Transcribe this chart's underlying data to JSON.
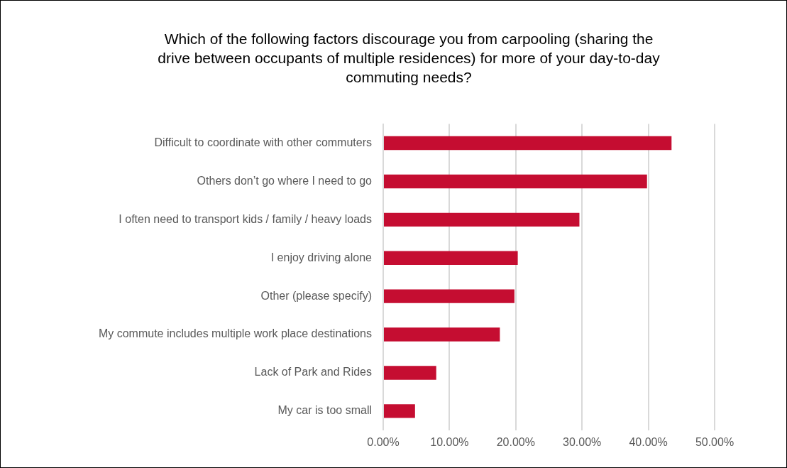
{
  "chart_data": {
    "type": "bar",
    "orientation": "horizontal",
    "title": "Which of the following factors discourage you from carpooling (sharing the drive between occupants of multiple residences) for more of your day-to-day commuting needs?",
    "categories": [
      "Difficult to coordinate with other commuters",
      "Others don’t go where I need to go",
      "I often need to transport kids / family / heavy loads",
      "I enjoy driving alone",
      "Other (please specify)",
      "My commute includes multiple work place destinations",
      "Lack of Park and Rides",
      "My car is too small"
    ],
    "values": [
      43.5,
      39.8,
      29.6,
      20.3,
      19.8,
      17.6,
      8.0,
      4.8
    ],
    "color": "#c50d31",
    "xlim": [
      0,
      50
    ],
    "xticks": [
      {
        "value": 0,
        "label": "0.00%"
      },
      {
        "value": 10,
        "label": "10.00%"
      },
      {
        "value": 20,
        "label": "20.00%"
      },
      {
        "value": 30,
        "label": "30.00%"
      },
      {
        "value": 40,
        "label": "40.00%"
      },
      {
        "value": 50,
        "label": "50.00%"
      }
    ],
    "grid": "x",
    "legend": false
  }
}
